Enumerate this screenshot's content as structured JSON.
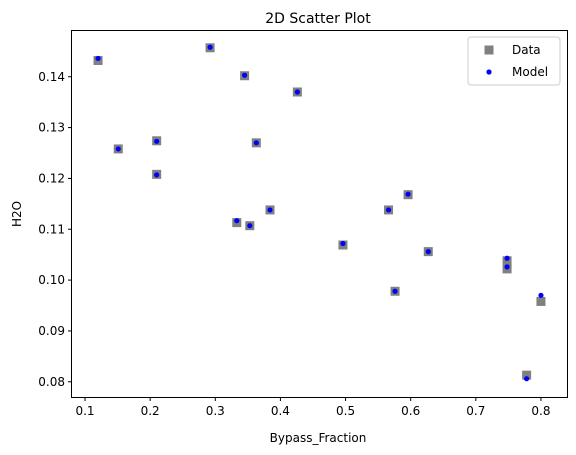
{
  "chart_data": {
    "type": "scatter",
    "title": "2D Scatter Plot",
    "xlabel": "Bypass_Fraction",
    "ylabel": "H2O",
    "xlim": [
      0.08,
      0.84
    ],
    "ylim": [
      0.077,
      0.149
    ],
    "xticks": [
      "0.1",
      "0.2",
      "0.3",
      "0.4",
      "0.5",
      "0.6",
      "0.7",
      "0.8"
    ],
    "xtick_values": [
      0.1,
      0.2,
      0.3,
      0.4,
      0.5,
      0.6,
      0.7,
      0.8
    ],
    "yticks": [
      "0.08",
      "0.09",
      "0.10",
      "0.11",
      "0.12",
      "0.13",
      "0.14"
    ],
    "ytick_values": [
      0.08,
      0.09,
      0.1,
      0.11,
      0.12,
      0.13,
      0.14
    ],
    "grid": false,
    "legend_position": "top-right",
    "series": [
      {
        "name": "Data",
        "marker": "square",
        "color": "#808080",
        "points": [
          [
            0.12,
            0.1432
          ],
          [
            0.151,
            0.1258
          ],
          [
            0.21,
            0.1274
          ],
          [
            0.21,
            0.1208
          ],
          [
            0.292,
            0.1457
          ],
          [
            0.345,
            0.1402
          ],
          [
            0.363,
            0.127
          ],
          [
            0.426,
            0.137
          ],
          [
            0.333,
            0.1113
          ],
          [
            0.353,
            0.1107
          ],
          [
            0.384,
            0.1138
          ],
          [
            0.496,
            0.1069
          ],
          [
            0.566,
            0.1138
          ],
          [
            0.596,
            0.1168
          ],
          [
            0.576,
            0.0978
          ],
          [
            0.627,
            0.1056
          ],
          [
            0.748,
            0.1038
          ],
          [
            0.748,
            0.1022
          ],
          [
            0.8,
            0.0958
          ],
          [
            0.778,
            0.0813
          ]
        ]
      },
      {
        "name": "Model",
        "marker": "circle",
        "color": "#0000ff",
        "points": [
          [
            0.12,
            0.1436
          ],
          [
            0.151,
            0.1258
          ],
          [
            0.21,
            0.1273
          ],
          [
            0.21,
            0.1207
          ],
          [
            0.292,
            0.1458
          ],
          [
            0.345,
            0.1403
          ],
          [
            0.363,
            0.127
          ],
          [
            0.426,
            0.137
          ],
          [
            0.333,
            0.1117
          ],
          [
            0.353,
            0.1107
          ],
          [
            0.384,
            0.1138
          ],
          [
            0.496,
            0.1072
          ],
          [
            0.566,
            0.1138
          ],
          [
            0.596,
            0.1169
          ],
          [
            0.576,
            0.0978
          ],
          [
            0.627,
            0.1056
          ],
          [
            0.748,
            0.1043
          ],
          [
            0.748,
            0.1026
          ],
          [
            0.8,
            0.097
          ],
          [
            0.778,
            0.0806
          ]
        ]
      }
    ]
  }
}
